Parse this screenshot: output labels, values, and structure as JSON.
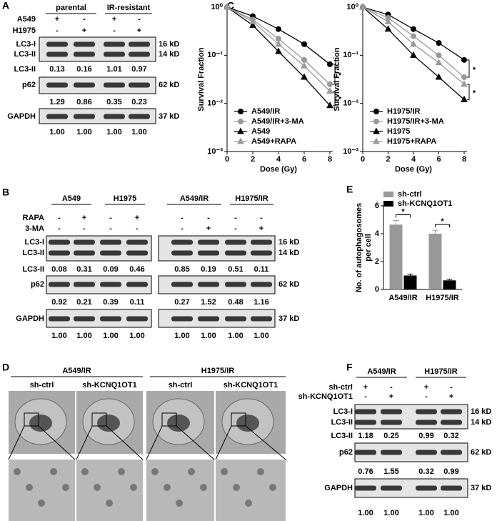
{
  "panel_a": {
    "letter": "A",
    "groups": [
      "parental",
      "IR-resistant"
    ],
    "conditions": [
      {
        "label": "A549",
        "signs": [
          "+",
          "-",
          "+",
          "-"
        ]
      },
      {
        "label": "H1975",
        "signs": [
          "-",
          "+",
          "-",
          "+"
        ]
      }
    ],
    "blots": [
      {
        "bands": [
          "LC3-I",
          "LC3-II"
        ],
        "sizes": [
          "16 kD",
          "14 kD"
        ],
        "quant_label": "LC3-II",
        "quant": [
          "0.13",
          "0.16",
          "1.01",
          "0.97"
        ]
      },
      {
        "bands": [
          "p62"
        ],
        "sizes": [
          "62 kD"
        ],
        "quant": [
          "1.29",
          "0.86",
          "0.35",
          "0.23"
        ]
      },
      {
        "bands": [
          "GAPDH"
        ],
        "sizes": [
          "37 kD"
        ],
        "quant": [
          "1.00",
          "1.00",
          "1.00",
          "1.00"
        ]
      }
    ]
  },
  "panel_b": {
    "letter": "B",
    "groups": [
      "A549",
      "H1975",
      "A549/IR",
      "H1975/IR"
    ],
    "conditions": [
      {
        "label": "RAPA",
        "signs": [
          "-",
          "+",
          "-",
          "+",
          "-",
          "-",
          "-",
          "-"
        ]
      },
      {
        "label": "3-MA",
        "signs": [
          "-",
          "-",
          "-",
          "-",
          "-",
          "+",
          "-",
          "+"
        ]
      }
    ],
    "blots": [
      {
        "bands": [
          "LC3-I",
          "LC3-II"
        ],
        "sizes": [
          "16 kD",
          "14 kD"
        ],
        "quant_label": "LC3-II",
        "quant": [
          "0.08",
          "0.31",
          "0.09",
          "0.46",
          "0.85",
          "0.19",
          "0.51",
          "0.11"
        ]
      },
      {
        "bands": [
          "p62"
        ],
        "sizes": [
          "62 kD"
        ],
        "quant": [
          "0.92",
          "0.21",
          "0.39",
          "0.11",
          "0.27",
          "1.52",
          "0.48",
          "1.16"
        ]
      },
      {
        "bands": [
          "GAPDH"
        ],
        "sizes": [
          "37 kD"
        ],
        "quant": [
          "1.00",
          "1.00",
          "1.00",
          "1.00",
          "1.00",
          "1.00",
          "1.00",
          "1.00"
        ]
      }
    ]
  },
  "panel_c": {
    "letter": "C"
  },
  "panel_d": {
    "letter": "D",
    "groups": [
      "A549/IR",
      "H1975/IR"
    ],
    "conditions": [
      "sh-ctrl",
      "sh-KCNQ1OT1",
      "sh-ctrl",
      "sh-KCNQ1OT1"
    ]
  },
  "panel_e": {
    "letter": "E"
  },
  "panel_f": {
    "letter": "F",
    "groups": [
      "A549/IR",
      "H1975/IR"
    ],
    "conditions": [
      {
        "label": "sh-ctrl",
        "signs": [
          "+",
          "-",
          "+",
          "-"
        ]
      },
      {
        "label": "sh-KCNQ1OT1",
        "signs": [
          "-",
          "+",
          "-",
          "+"
        ]
      }
    ],
    "blots": [
      {
        "bands": [
          "LC3-I",
          "LC3-II"
        ],
        "sizes": [
          "16 kD",
          "14 kD"
        ],
        "quant_label": "LC3-II",
        "quant": [
          "1.18",
          "0.25",
          "0.99",
          "0.32"
        ]
      },
      {
        "bands": [
          "p62"
        ],
        "sizes": [
          "62 kD"
        ],
        "quant": [
          "0.76",
          "1.55",
          "0.32",
          "0.99"
        ]
      },
      {
        "bands": [
          "GAPDH"
        ],
        "sizes": [
          "37 kD"
        ],
        "quant": [
          "1.00",
          "1.00",
          "1.00",
          "1.00"
        ]
      }
    ]
  },
  "chart_data": [
    {
      "type": "line",
      "ylabel": "Survival Fraction",
      "xlabel": "Dose (Gy)",
      "x": [
        0,
        2,
        4,
        6,
        8
      ],
      "xlim": [
        0,
        8
      ],
      "xticks": [
        0,
        2,
        4,
        6,
        8
      ],
      "log_y": true,
      "ylim": [
        0.001,
        1
      ],
      "yticks": [
        {
          "value": 1,
          "label": "10⁰"
        },
        {
          "value": 0.1,
          "label": "10⁻¹"
        },
        {
          "value": 0.01,
          "label": "10⁻²"
        },
        {
          "value": 0.001,
          "label": "10⁻³"
        }
      ],
      "legend": "lower left",
      "annotations": [
        "*",
        "*"
      ],
      "series": [
        {
          "name": "A549/IR",
          "color": "#000000",
          "marker": "circle",
          "values": [
            1,
            0.65,
            0.35,
            0.17,
            0.065
          ]
        },
        {
          "name": "A549/IR+3-MA",
          "color": "#999999",
          "marker": "circle",
          "values": [
            1,
            0.55,
            0.22,
            0.08,
            0.025
          ]
        },
        {
          "name": "A549",
          "color": "#000000",
          "marker": "triangle",
          "values": [
            1,
            0.42,
            0.12,
            0.035,
            0.009
          ]
        },
        {
          "name": "A549+RAPA",
          "color": "#999999",
          "marker": "triangle",
          "values": [
            1,
            0.5,
            0.17,
            0.06,
            0.018
          ]
        }
      ]
    },
    {
      "type": "line",
      "ylabel": "Survival Fraction",
      "xlabel": "Dose (Gy)",
      "x": [
        0,
        2,
        4,
        6,
        8
      ],
      "xlim": [
        0,
        8
      ],
      "xticks": [
        0,
        2,
        4,
        6,
        8
      ],
      "log_y": true,
      "ylim": [
        0.001,
        1
      ],
      "yticks": [
        {
          "value": 1,
          "label": "10⁰"
        },
        {
          "value": 0.1,
          "label": "10⁻¹"
        },
        {
          "value": 0.01,
          "label": "10⁻²"
        },
        {
          "value": 0.001,
          "label": "10⁻³"
        }
      ],
      "legend": "lower left",
      "annotations": [
        "*",
        "*"
      ],
      "series": [
        {
          "name": "H1975/IR",
          "color": "#000000",
          "marker": "circle",
          "values": [
            1,
            0.7,
            0.35,
            0.18,
            0.08
          ]
        },
        {
          "name": "H1975/IR+3-MA",
          "color": "#999999",
          "marker": "circle",
          "values": [
            1,
            0.6,
            0.25,
            0.1,
            0.035
          ]
        },
        {
          "name": "H1975",
          "color": "#000000",
          "marker": "triangle",
          "values": [
            1,
            0.35,
            0.1,
            0.035,
            0.012
          ]
        },
        {
          "name": "H1975+RAPA",
          "color": "#999999",
          "marker": "triangle",
          "values": [
            1,
            0.5,
            0.17,
            0.07,
            0.025
          ]
        }
      ]
    },
    {
      "type": "bar",
      "ylabel": [
        "No. of autophagosomes",
        "per cell"
      ],
      "categories": [
        "A549/IR",
        "H1975/IR"
      ],
      "ylim": [
        0,
        6
      ],
      "yticks": [
        0,
        2,
        4,
        6
      ],
      "legend": "upper left",
      "annotations": [
        "*",
        "*"
      ],
      "series": [
        {
          "name": "sh-ctrl",
          "color": "#999999",
          "values": [
            4.65,
            4.0
          ],
          "errors": [
            0.3,
            0.25
          ]
        },
        {
          "name": "sh-KCNQ1OT1",
          "color": "#000000",
          "values": [
            1.0,
            0.65
          ],
          "errors": [
            0.1,
            0.08
          ]
        }
      ]
    }
  ]
}
